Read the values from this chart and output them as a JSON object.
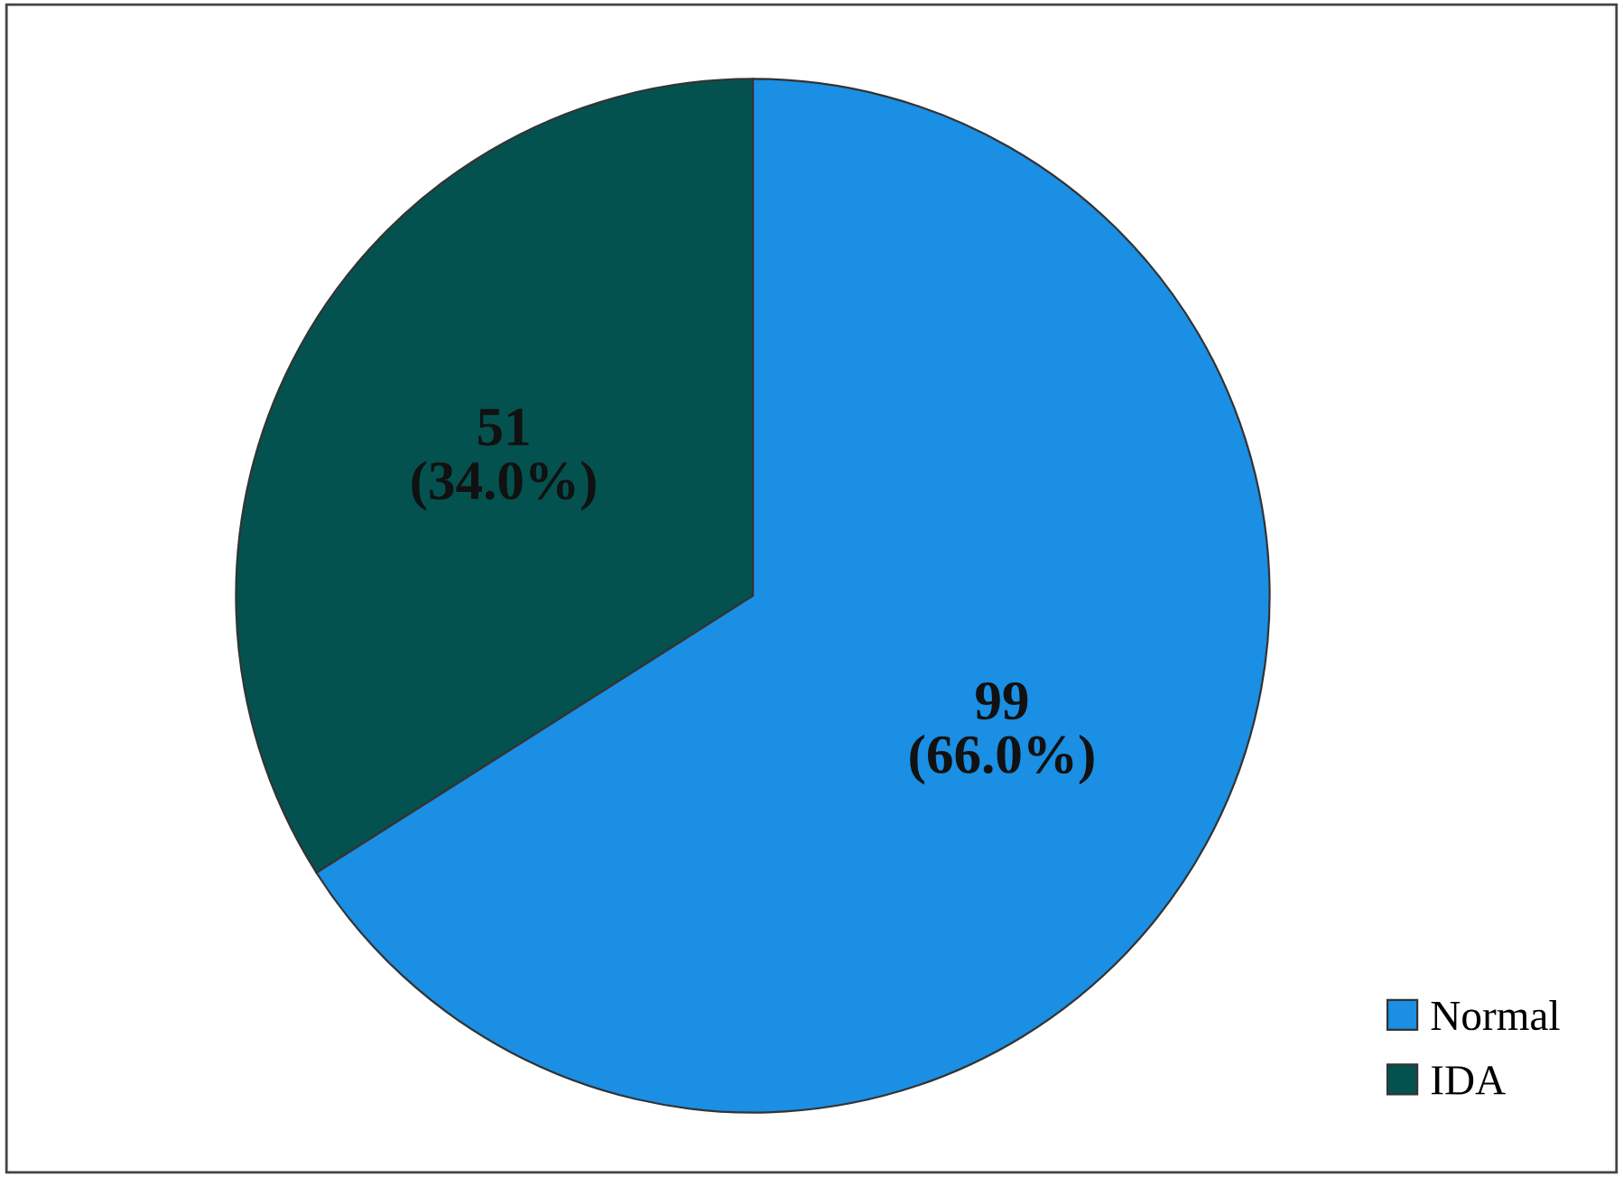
{
  "chart_data": {
    "type": "pie",
    "categories": [
      "Normal",
      "IDA"
    ],
    "values": [
      99,
      51
    ],
    "colors": [
      "#1a8fe3",
      "#04524f"
    ],
    "value_labels": [
      "99\n(66.0%)",
      "51\n(34.0%)"
    ],
    "legend": "bottom right"
  }
}
